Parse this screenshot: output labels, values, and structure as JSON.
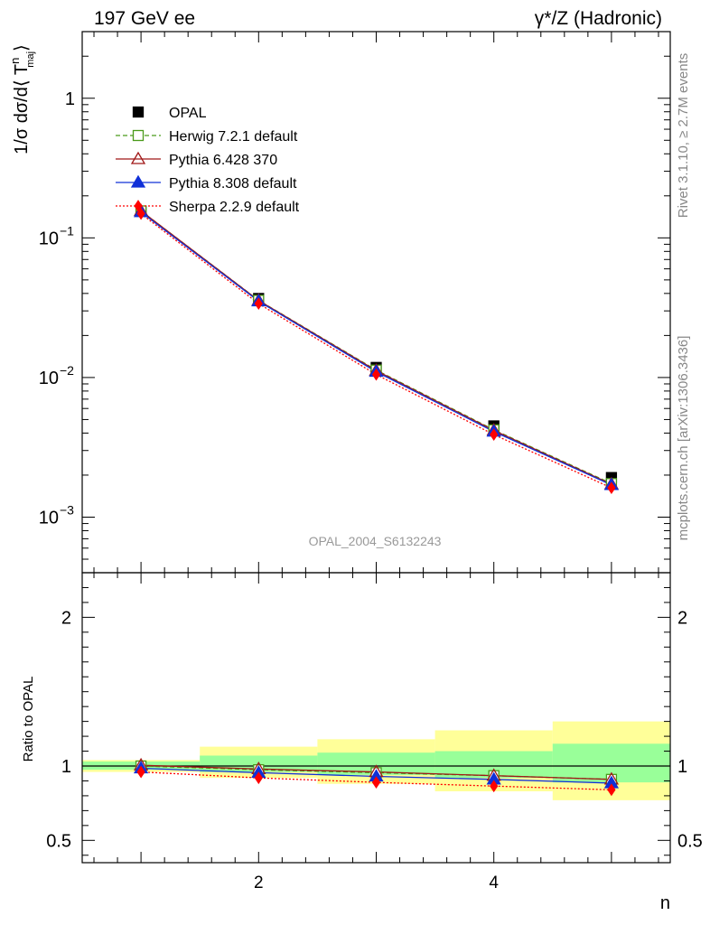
{
  "header": {
    "left_label": "197 GeV ee",
    "right_label": "γ*/Z (Hadronic)"
  },
  "side_labels": {
    "rivet": "Rivet 3.1.10, ≥ 2.7M events",
    "mcplots": "mcplots.cern.ch [arXiv:1306.3436]"
  },
  "analysis_id": "OPAL_2004_S6132243",
  "chart_data": [
    {
      "type": "line",
      "panel": "main",
      "ylabel": "1/σ dσ/d⟨ T",
      "ylabel_sup": "n",
      "ylabel_sub": "maj",
      "ylabel_close": "⟩",
      "yscale": "log",
      "xlim": [
        0.5,
        5.5
      ],
      "ylim": [
        0.0004,
        3
      ],
      "y_tick_labels": [
        {
          "value": 1,
          "base": "1",
          "exp": ""
        },
        {
          "value": 0.1,
          "base": "10",
          "exp": "−1"
        },
        {
          "value": 0.01,
          "base": "10",
          "exp": "−2"
        },
        {
          "value": 0.001,
          "base": "10",
          "exp": "−3"
        }
      ],
      "x": [
        1,
        2,
        3,
        4,
        5
      ],
      "series": [
        {
          "name": "OPAL",
          "color": "#000000",
          "marker": "filled-square",
          "line": "none",
          "values": [
            0.155,
            0.0368,
            0.0118,
            0.0045,
            0.00192
          ]
        },
        {
          "name": "Herwig 7.2.1 default",
          "color": "#4a9a1a",
          "marker": "open-square",
          "line": "dashed",
          "values": [
            0.156,
            0.0357,
            0.0113,
            0.00422,
            0.00174
          ]
        },
        {
          "name": "Pythia 6.428 370",
          "color": "#a01818",
          "marker": "open-triangle",
          "line": "solid",
          "values": [
            0.156,
            0.0356,
            0.0112,
            0.00418,
            0.00172
          ]
        },
        {
          "name": "Pythia 8.308 default",
          "color": "#1030d8",
          "marker": "filled-triangle",
          "line": "solid",
          "values": [
            0.153,
            0.0352,
            0.011,
            0.0041,
            0.0017
          ]
        },
        {
          "name": "Sherpa 2.2.9 default",
          "color": "#ff0000",
          "marker": "filled-diamond",
          "line": "dotted",
          "values": [
            0.149,
            0.0338,
            0.0105,
            0.0039,
            0.00162
          ]
        }
      ]
    },
    {
      "type": "line",
      "panel": "ratio",
      "ylabel": "Ratio to OPAL",
      "xlabel": "n",
      "ylim": [
        0.35,
        2.3
      ],
      "x_ticks": [
        2,
        4
      ],
      "y_ticks": [
        0.5,
        1,
        2
      ],
      "y_tick_labels": [
        "0.5",
        "1",
        "2"
      ],
      "x": [
        1,
        2,
        3,
        4,
        5
      ],
      "bands": {
        "edges": [
          0.5,
          1.5,
          2.5,
          3.5,
          4.5,
          5.5
        ],
        "stat_color": "#99ff99",
        "total_color": "#ffff99",
        "stat": [
          [
            0.975,
            1.03
          ],
          [
            0.96,
            1.07
          ],
          [
            0.94,
            1.09
          ],
          [
            0.92,
            1.1
          ],
          [
            0.89,
            1.15
          ]
        ],
        "total": [
          [
            0.96,
            1.04
          ],
          [
            0.92,
            1.13
          ],
          [
            0.88,
            1.18
          ],
          [
            0.83,
            1.24
          ],
          [
            0.77,
            1.3
          ]
        ]
      },
      "series": [
        {
          "name": "Herwig 7.2.1 default",
          "color": "#4a9a1a",
          "marker": "open-square",
          "line": "dashed",
          "values": [
            1.0,
            0.975,
            0.955,
            0.935,
            0.91
          ]
        },
        {
          "name": "Pythia 6.428 370",
          "color": "#a01818",
          "marker": "open-triangle",
          "line": "solid",
          "values": [
            1.005,
            0.98,
            0.96,
            0.935,
            0.91
          ]
        },
        {
          "name": "Pythia 8.308 default",
          "color": "#1030d8",
          "marker": "filled-triangle",
          "line": "solid",
          "values": [
            0.985,
            0.955,
            0.93,
            0.91,
            0.885
          ]
        },
        {
          "name": "Sherpa 2.2.9 default",
          "color": "#ff0000",
          "marker": "filled-diamond",
          "line": "dotted",
          "values": [
            0.96,
            0.92,
            0.89,
            0.865,
            0.84
          ]
        }
      ]
    }
  ]
}
